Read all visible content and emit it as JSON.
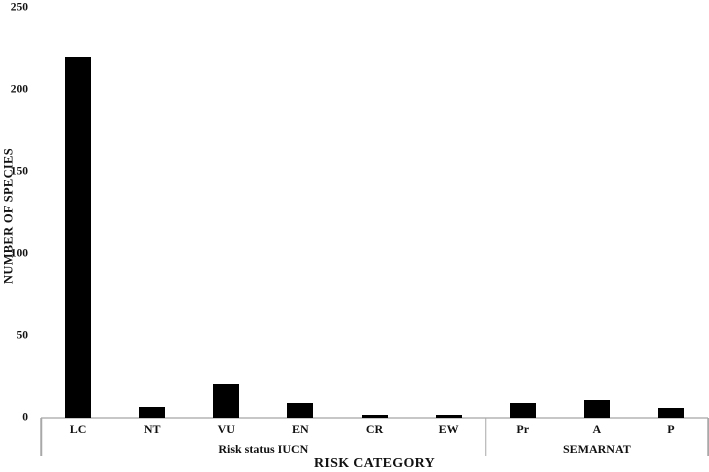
{
  "chart_data": {
    "type": "bar",
    "title": "",
    "xlabel": "RISK CATEGORY",
    "ylabel": "NUMBER OF SPECIES",
    "categories": [
      "LC",
      "NT",
      "VU",
      "EN",
      "CR",
      "EW",
      "Pr",
      "A",
      "P"
    ],
    "values": [
      220,
      7,
      21,
      9,
      2,
      2,
      9,
      11,
      6
    ],
    "series": [
      {
        "name": "Number of species",
        "values": [
          220,
          7,
          21,
          9,
          2,
          2,
          9,
          11,
          6
        ]
      }
    ],
    "groups": [
      {
        "label": "Risk status IUCN",
        "span": 6
      },
      {
        "label": "SEMARNAT",
        "span": 3
      }
    ],
    "ylim": [
      0,
      250
    ],
    "yticks": [
      0,
      50,
      100,
      150,
      200,
      250
    ],
    "grid": false,
    "legend": false,
    "bar_color": "#000000",
    "axis_line_color": "#c7c7c7",
    "divider_color": "#a8a8a8",
    "background_color": "#ffffff"
  }
}
